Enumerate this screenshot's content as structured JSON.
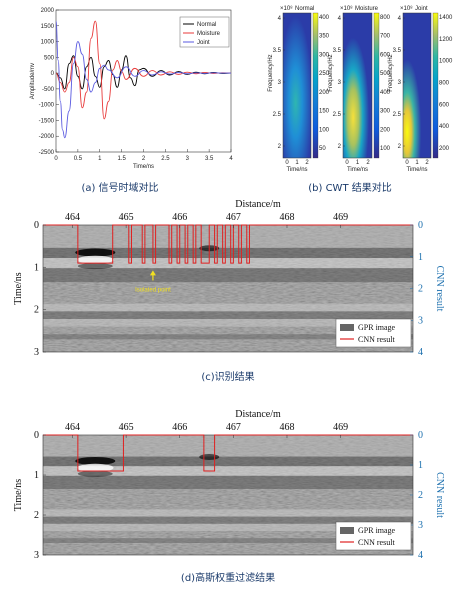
{
  "chart_data": [
    {
      "type": "line",
      "panel": "a",
      "ylabel": "Amplitude/mv",
      "xlabel": "Time/ns",
      "xlim": [
        0,
        4
      ],
      "ylim": [
        -2500,
        2000
      ],
      "xticks": [
        0,
        0.5,
        1,
        1.5,
        2,
        2.5,
        3,
        3.5,
        4
      ],
      "xtick_labels": [
        "0",
        "0.5",
        "1",
        "1.5",
        "2",
        "2.5",
        "3",
        "3.5",
        "4"
      ],
      "yticks": [
        -2500,
        -2000,
        -1500,
        -1000,
        -500,
        0,
        500,
        1000,
        1500,
        2000
      ],
      "ytick_labels": [
        "-2500",
        "-2000",
        "-1500",
        "-1000",
        "-500",
        "0",
        "500",
        "1000",
        "1500",
        "2000"
      ],
      "legend_position": "top-right",
      "series": [
        {
          "name": "Normal",
          "color": "#000000",
          "x": [
            0,
            0.1,
            0.2,
            0.3,
            0.4,
            0.5,
            0.6,
            0.7,
            0.8,
            0.9,
            1.0,
            1.1,
            1.2,
            1.3,
            1.4,
            1.5,
            1.6,
            1.7,
            1.8,
            1.9,
            2.0,
            2.2,
            2.4,
            2.6,
            2.8,
            3.0,
            3.2,
            3.4,
            3.6,
            3.8,
            4.0
          ],
          "y": [
            0,
            -150,
            -500,
            300,
            550,
            -100,
            -500,
            200,
            500,
            -100,
            -450,
            200,
            400,
            -50,
            -450,
            100,
            550,
            -150,
            -400,
            100,
            150,
            -100,
            80,
            -60,
            50,
            -40,
            30,
            -20,
            20,
            -10,
            0
          ]
        },
        {
          "name": "Moisture",
          "color": "#e83a3a",
          "x": [
            0,
            0.1,
            0.2,
            0.3,
            0.4,
            0.5,
            0.6,
            0.7,
            0.8,
            0.9,
            1.0,
            1.1,
            1.2,
            1.3,
            1.4,
            1.5,
            1.6,
            1.8,
            2.0,
            2.2,
            2.4,
            2.6,
            2.8,
            3.0,
            3.2,
            3.4,
            3.6,
            3.8,
            4.0
          ],
          "y": [
            0,
            -300,
            -600,
            -300,
            500,
            200,
            -1100,
            -600,
            1100,
            1650,
            300,
            -1450,
            -900,
            100,
            400,
            50,
            -200,
            150,
            -100,
            80,
            -60,
            40,
            -40,
            30,
            -20,
            20,
            -10,
            10,
            0
          ]
        },
        {
          "name": "Joint",
          "color": "#5a5ae0",
          "x": [
            0,
            0.05,
            0.1,
            0.15,
            0.2,
            0.3,
            0.4,
            0.5,
            0.6,
            0.7,
            0.8,
            0.9,
            1.0,
            1.1,
            1.2,
            1.4,
            1.6,
            1.8,
            2.0,
            2.2,
            2.4,
            2.6,
            2.8,
            3.0,
            3.2,
            3.4,
            3.6,
            3.8,
            4.0
          ],
          "y": [
            1650,
            400,
            -900,
            -1800,
            -2050,
            -1200,
            300,
            1000,
            600,
            -200,
            -600,
            -300,
            150,
            250,
            100,
            -150,
            200,
            -100,
            80,
            -60,
            40,
            -30,
            20,
            -20,
            10,
            -10,
            10,
            0,
            0
          ]
        }
      ]
    },
    {
      "type": "heatmap",
      "panel": "b",
      "colormap": "parula",
      "panels": [
        {
          "title_prefix": "×10⁸",
          "title": "Normal",
          "ylabel": "Frequency/Hz",
          "xlabel": "Time/ns",
          "yticks": [
            "2",
            "2.5",
            "3",
            "3.5",
            "4"
          ],
          "xticks": [
            "0",
            "1",
            "2"
          ],
          "cbar_ticks": [
            "50",
            "100",
            "150",
            "200",
            "250",
            "300",
            "350",
            "400"
          ]
        },
        {
          "title_prefix": "×10⁸",
          "title": "Moisture",
          "ylabel": "Frequency/Hz",
          "xlabel": "Time/ns",
          "yticks": [
            "2",
            "2.5",
            "3",
            "3.5",
            "4"
          ],
          "xticks": [
            "0",
            "1",
            "2"
          ],
          "cbar_ticks": [
            "100",
            "200",
            "300",
            "400",
            "500",
            "600",
            "700",
            "800"
          ]
        },
        {
          "title_prefix": "×10⁸",
          "title": "Joint",
          "ylabel": "Frequency/Hz",
          "xlabel": "Time/ns",
          "yticks": [
            "2",
            "2.5",
            "3",
            "3.5",
            "4"
          ],
          "xticks": [
            "0",
            "1",
            "2"
          ],
          "cbar_ticks": [
            "200",
            "400",
            "600",
            "800",
            "1000",
            "1200",
            "1400"
          ]
        }
      ]
    },
    {
      "type": "heatmap",
      "panel": "c",
      "xlabel": "Distance/m",
      "ylabel": "Time/ns",
      "ylabel_right": "CNN result",
      "xticks": [
        "464",
        "465",
        "466",
        "467",
        "468",
        "469"
      ],
      "xtick_values": [
        464,
        465,
        466,
        467,
        468,
        469
      ],
      "yticks": [
        "0",
        "1",
        "2",
        "3"
      ],
      "ytick_values": [
        0,
        1,
        2,
        3
      ],
      "yticks_right": [
        "0",
        "1",
        "2",
        "3",
        "4"
      ],
      "ytick_right_values": [
        0,
        1,
        2,
        3,
        4
      ],
      "xlim": [
        463.45,
        470.35
      ],
      "ylim": [
        0,
        3
      ],
      "legend": [
        "GPR image",
        "CNN result"
      ],
      "annotation": "Isolated point",
      "cnn_segments": [
        [
          464.1,
          464.75
        ],
        [
          465.05,
          465.1
        ],
        [
          465.3,
          465.35
        ],
        [
          465.5,
          465.55
        ],
        [
          465.8,
          465.85
        ],
        [
          465.95,
          466.0
        ],
        [
          466.1,
          466.15
        ],
        [
          466.25,
          466.3
        ],
        [
          466.4,
          466.55
        ],
        [
          466.65,
          466.7
        ],
        [
          466.8,
          466.85
        ],
        [
          466.95,
          467.0
        ],
        [
          467.1,
          467.15
        ],
        [
          467.25,
          467.3
        ]
      ],
      "cnn_level": 1.2
    },
    {
      "type": "heatmap",
      "panel": "d",
      "xlabel": "Distance/m",
      "ylabel": "Time/ns",
      "ylabel_right": "CNN result",
      "xticks": [
        "464",
        "465",
        "466",
        "467",
        "468",
        "469"
      ],
      "xtick_values": [
        464,
        465,
        466,
        467,
        468,
        469
      ],
      "yticks": [
        "0",
        "1",
        "2",
        "3"
      ],
      "ytick_values": [
        0,
        1,
        2,
        3
      ],
      "yticks_right": [
        "0",
        "1",
        "2",
        "3",
        "4"
      ],
      "ytick_right_values": [
        0,
        1,
        2,
        3,
        4
      ],
      "xlim": [
        463.45,
        470.35
      ],
      "ylim": [
        0,
        3
      ],
      "legend": [
        "GPR image",
        "CNN result"
      ],
      "cnn_segments": [
        [
          464.1,
          464.95
        ],
        [
          466.45,
          466.65
        ]
      ],
      "cnn_level": 1.2
    }
  ],
  "captions": {
    "a": "(a) 信号时域对比",
    "b": "(b) CWT 结果对比",
    "c": "(c)识别结果",
    "d": "(d)高斯权重过滤结果"
  }
}
